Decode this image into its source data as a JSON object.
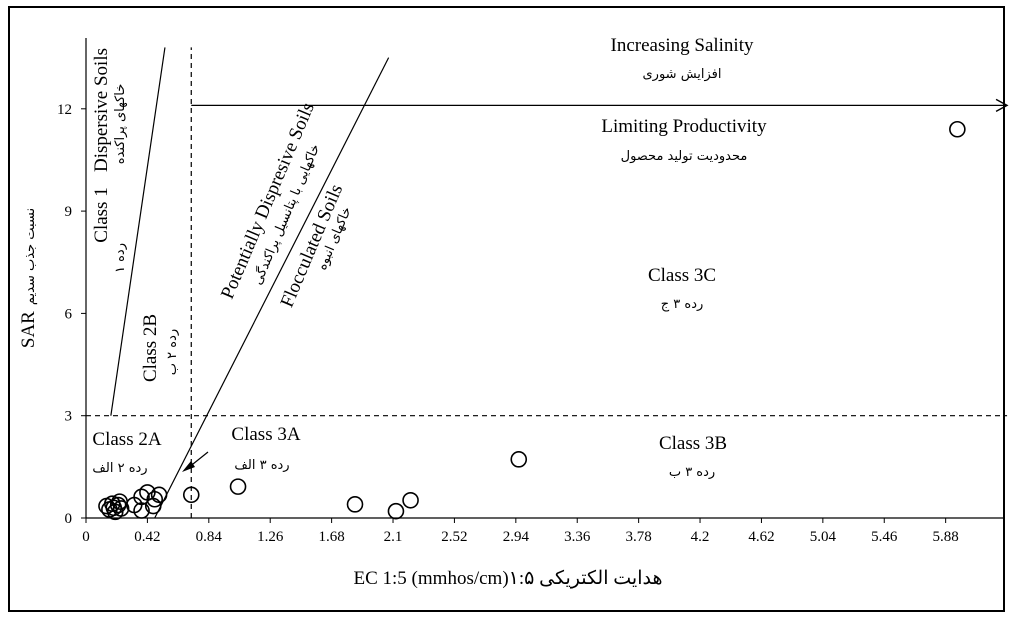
{
  "chart_data": {
    "type": "scatter",
    "title": "",
    "xlabel": "EC 1:5 (mmhos/cm)هدایت الکتریکی ۱:۵",
    "ylabel": "SAR نسبت جذب سدیم",
    "ylabel_en": "SAR",
    "ylabel_fa": "نسبت جذب سدیم",
    "xlim": [
      0,
      6.3
    ],
    "ylim": [
      0,
      14
    ],
    "x_ticks": [
      "0",
      "0.42",
      "0.84",
      "1.26",
      "1.68",
      "2.1",
      "2.52",
      "2.94",
      "3.36",
      "3.78",
      "4.2",
      "4.62",
      "5.04",
      "5.46",
      "5.88"
    ],
    "y_ticks": [
      "0",
      "3",
      "6",
      "9",
      "12"
    ],
    "grid": false,
    "points": [
      {
        "x": 0.14,
        "y": 0.35
      },
      {
        "x": 0.16,
        "y": 0.25
      },
      {
        "x": 0.18,
        "y": 0.42
      },
      {
        "x": 0.19,
        "y": 0.3
      },
      {
        "x": 0.2,
        "y": 0.18
      },
      {
        "x": 0.22,
        "y": 0.38
      },
      {
        "x": 0.23,
        "y": 0.48
      },
      {
        "x": 0.24,
        "y": 0.28
      },
      {
        "x": 0.33,
        "y": 0.38
      },
      {
        "x": 0.38,
        "y": 0.62
      },
      {
        "x": 0.38,
        "y": 0.22
      },
      {
        "x": 0.42,
        "y": 0.75
      },
      {
        "x": 0.46,
        "y": 0.35
      },
      {
        "x": 0.47,
        "y": 0.55
      },
      {
        "x": 0.5,
        "y": 0.68
      },
      {
        "x": 0.72,
        "y": 0.68
      },
      {
        "x": 1.04,
        "y": 0.92
      },
      {
        "x": 1.84,
        "y": 0.4
      },
      {
        "x": 2.12,
        "y": 0.2
      },
      {
        "x": 2.22,
        "y": 0.52
      },
      {
        "x": 2.96,
        "y": 1.72
      },
      {
        "x": 5.96,
        "y": 11.4
      }
    ],
    "boundaries": {
      "class1_line": [
        [
          0.17,
          3
        ],
        [
          0.54,
          13.8
        ]
      ],
      "flocculation_line": [
        [
          0.47,
          0
        ],
        [
          2.07,
          13.5
        ]
      ],
      "vertical_dashed_x": 0.72,
      "horizontal_dashed_y": 3,
      "salinity_arrow": {
        "y": 12.1,
        "x_from": 0.72,
        "x_to": 6.3
      }
    },
    "annotations": {
      "increasing_salinity": "Increasing Salinity",
      "increasing_salinity_fa": "افزایش شوری",
      "limiting_productivity": "Limiting Productivity",
      "limiting_productivity_fa": "محدودیت تولید محصول",
      "dispersive_soils": "Dispersive Soils",
      "dispersive_soils_fa": "خاکهای پراکنده",
      "class1": "Class 1",
      "class1_fa": "رده ۱",
      "class2b": "Class 2B",
      "class2b_fa": "رده ۲ ب",
      "potentially_dispersive": "Potentially Dispresive Soils",
      "potentially_dispersive_fa": "خاکهایی با پتانسیل پراکندگی",
      "flocculated": "Flocculated Soils",
      "flocculated_fa": "خاکهای انبوه",
      "class3c": "Class 3C",
      "class3c_fa": "رده ۳ ج",
      "class2a": "Class 2A",
      "class2a_fa": "رده ۲ الف",
      "class3a": "Class 3A",
      "class3a_fa": "رده ۳ الف",
      "class3b": "Class 3B",
      "class3b_fa": "رده ۳ ب"
    }
  }
}
